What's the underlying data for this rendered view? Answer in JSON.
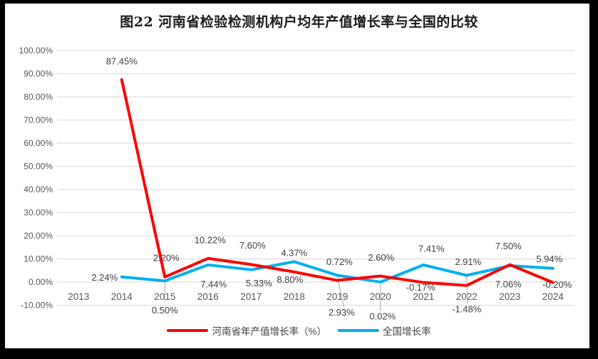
{
  "chart_data": {
    "type": "line",
    "title": "图22  河南省检验检测机构户均年产值增长率与全国的比较",
    "categories": [
      "2013",
      "2014",
      "2015",
      "2016",
      "2017",
      "2018",
      "2019",
      "2020",
      "2021",
      "2022",
      "2023",
      "2024"
    ],
    "series": [
      {
        "name": "河南省年产值增长率（%）",
        "color": "#FF0000",
        "values": [
          null,
          87.45,
          2.2,
          10.22,
          7.6,
          4.37,
          0.72,
          2.6,
          -0.17,
          -1.48,
          7.5,
          -0.2
        ],
        "labels": [
          "",
          "87.45%",
          "2.20%",
          "10.22%",
          "7.60%",
          "4.37%",
          "0.72%",
          "2.60%",
          "-0.17%",
          "-1.48%",
          "7.50%",
          "-0.20%"
        ]
      },
      {
        "name": "全国增长率",
        "color": "#00B0F0",
        "values": [
          null,
          2.24,
          0.5,
          7.44,
          5.33,
          8.8,
          2.93,
          0.02,
          7.41,
          2.91,
          7.06,
          5.94
        ],
        "labels": [
          "",
          "2.24%",
          "0.50%",
          "7.44%",
          "5.33%",
          "8.80%",
          "2.93%",
          "0.02%",
          "7.41%",
          "2.91%",
          "7.06%",
          "5.94%"
        ]
      }
    ],
    "y_axis": {
      "min": -10,
      "max": 100,
      "step": 10,
      "ticks": [
        "100.00%",
        "90.00%",
        "80.00%",
        "70.00%",
        "60.00%",
        "50.00%",
        "40.00%",
        "30.00%",
        "20.00%",
        "10.00%",
        "0.00%",
        "-10.00%"
      ]
    },
    "x_axis_label": "",
    "y_axis_label": "",
    "grid": true,
    "legend_position": "bottom",
    "colors": {
      "gridline": "#D9D9D9",
      "axis_text": "#595959",
      "label_text": "#404040",
      "leader_line": "#A6A6A6",
      "frame": "#000000",
      "background": "#FFFFFF"
    }
  }
}
